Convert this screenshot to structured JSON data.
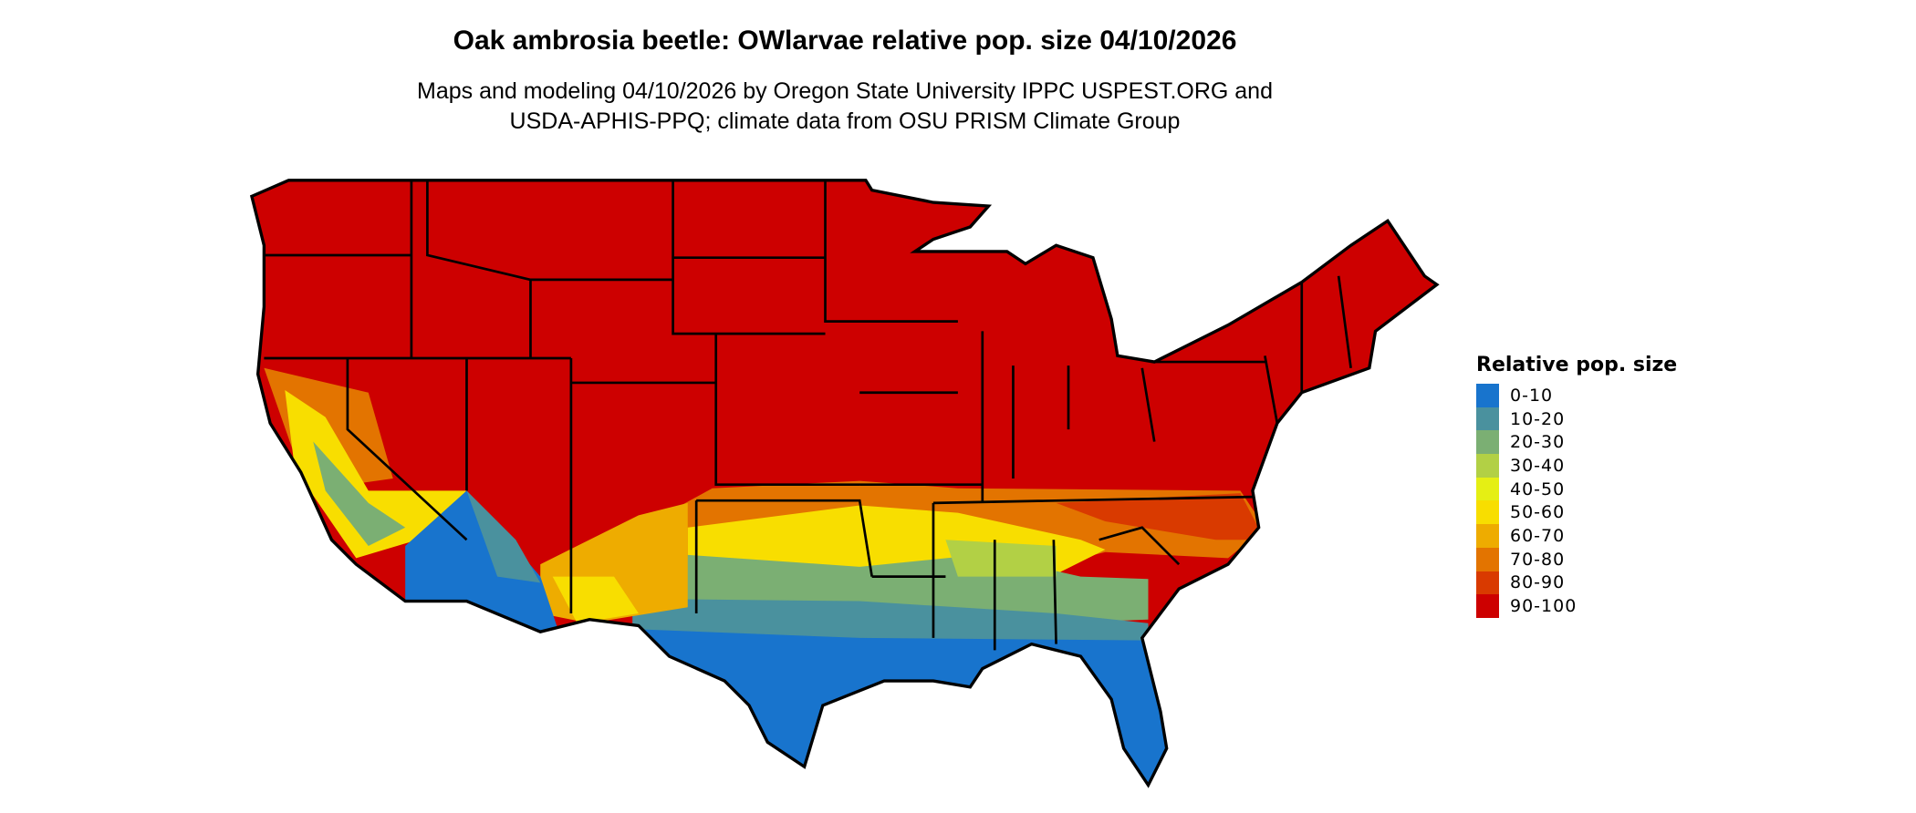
{
  "title": "Oak ambrosia beetle: OWlarvae relative pop. size 04/10/2026",
  "subtitle_lines": [
    "Maps and modeling 04/10/2026 by Oregon State University IPPC USPEST.ORG and",
    "USDA-APHIS-PPQ; climate data from OSU PRISM Climate Group"
  ],
  "legend": {
    "title": "Relative pop. size",
    "items": [
      {
        "label": "0-10",
        "color": "#1874CD"
      },
      {
        "label": "10-20",
        "color": "#4A919E"
      },
      {
        "label": "20-30",
        "color": "#7BAF73"
      },
      {
        "label": "30-40",
        "color": "#B2D045"
      },
      {
        "label": "40-50",
        "color": "#E5EF14"
      },
      {
        "label": "50-60",
        "color": "#F8DE00"
      },
      {
        "label": "60-70",
        "color": "#EEAC00"
      },
      {
        "label": "70-80",
        "color": "#E37400"
      },
      {
        "label": "80-90",
        "color": "#D93A00"
      },
      {
        "label": "90-100",
        "color": "#CD0000"
      }
    ]
  }
}
